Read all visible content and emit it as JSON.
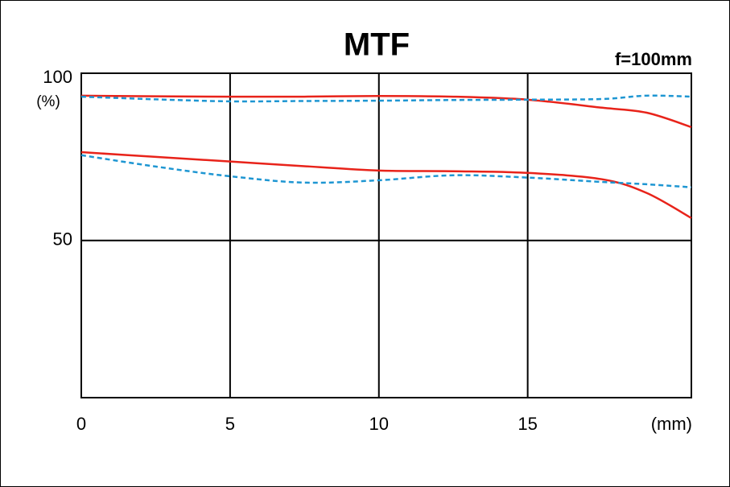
{
  "chart_data": {
    "type": "line",
    "title": "MTF",
    "annotation": "f=100mm",
    "x_label": "(mm)",
    "y_label": "(%)",
    "x": [
      0,
      2.5,
      5,
      7.5,
      10,
      12.5,
      15,
      17.5,
      19,
      20.5
    ],
    "series": [
      {
        "color": "#e8231a",
        "style": "solid",
        "values": [
          93.3,
          93.1,
          93.0,
          93.0,
          93.2,
          93.0,
          92.1,
          89.7,
          88.2,
          83.9
        ]
      },
      {
        "color": "#1e96d2",
        "style": "dashed",
        "values": [
          93.0,
          92.2,
          91.6,
          91.7,
          91.8,
          92.0,
          92.1,
          92.3,
          93.3,
          93.0
        ]
      },
      {
        "color": "#e8231a",
        "style": "solid",
        "values": [
          76.4,
          75.0,
          73.6,
          72.2,
          70.9,
          70.7,
          70.2,
          68.3,
          64.2,
          56.7
        ]
      },
      {
        "color": "#1e96d2",
        "style": "dashed",
        "values": [
          75.5,
          72.1,
          69.2,
          67.3,
          68.0,
          69.5,
          68.8,
          67.5,
          66.8,
          65.9
        ]
      }
    ],
    "xlim": [
      0,
      20.5
    ],
    "ylim": [
      3,
      100
    ],
    "xticks": [
      0,
      5,
      10,
      15
    ],
    "yticks": [
      50,
      100
    ],
    "grid": true
  }
}
